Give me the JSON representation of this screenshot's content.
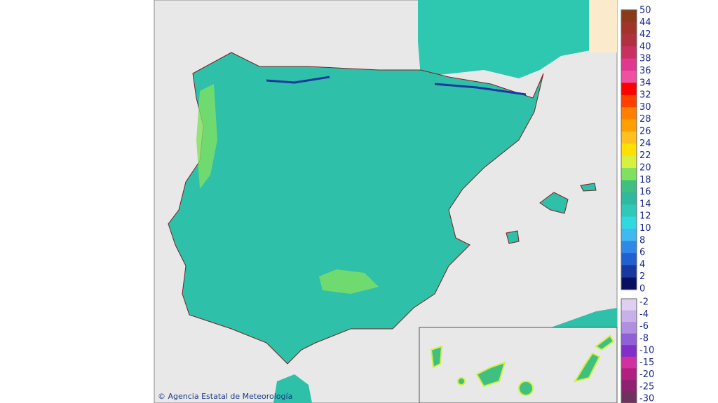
{
  "credit": "© Agencia Estatal de Meteorología",
  "legend": {
    "positive": {
      "labels": [
        50,
        44,
        42,
        40,
        38,
        36,
        34,
        32,
        30,
        28,
        26,
        24,
        22,
        20,
        18,
        16,
        14,
        12,
        10,
        8,
        6,
        4,
        2,
        0
      ],
      "colors": [
        "#8b3a1a",
        "#a0342a",
        "#b03040",
        "#c83060",
        "#e03890",
        "#f050a0",
        "#ff0000",
        "#ff4000",
        "#ff8000",
        "#ffa000",
        "#ffc020",
        "#ffe000",
        "#d8f040",
        "#80e060",
        "#40c080",
        "#30b8a0",
        "#30c8b8",
        "#30d8e0",
        "#40b8f0",
        "#3088e8",
        "#2060d0",
        "#1838a0",
        "#0a1060"
      ]
    },
    "negative": {
      "labels": [
        -2,
        -4,
        -6,
        -8,
        -10,
        -15,
        -20,
        -25,
        -30
      ],
      "colors": [
        "#e0d0f0",
        "#c8b0e8",
        "#b090e0",
        "#9060d8",
        "#8030c8",
        "#d030a0",
        "#b02080",
        "#902070",
        "#703060"
      ]
    }
  }
}
